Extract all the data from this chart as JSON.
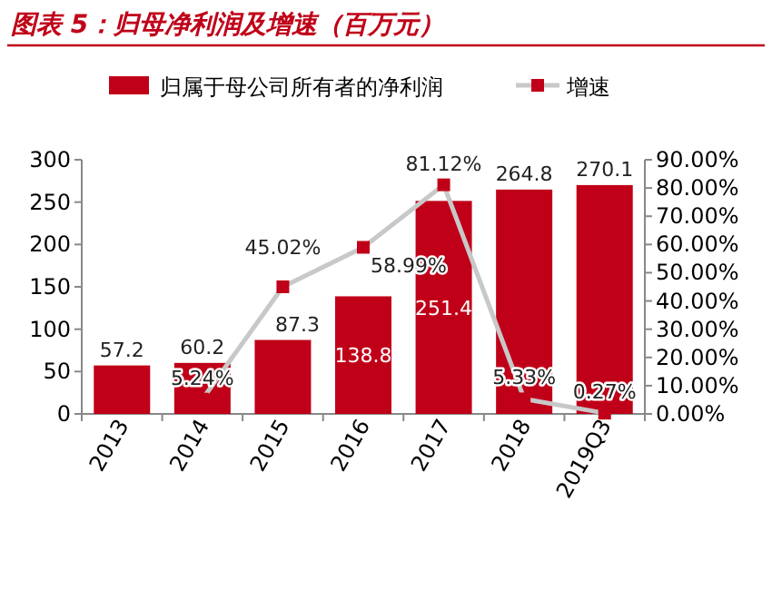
{
  "chart_data": {
    "type": "bar",
    "title": "图表 5：归母净利润及增速（百万元）",
    "categories": [
      "2013",
      "2014",
      "2015",
      "2016",
      "2017",
      "2018",
      "2019Q3"
    ],
    "series": [
      {
        "name": "归属于母公司所有者的净利润",
        "type": "bar",
        "color": "#c00018",
        "values": [
          57.2,
          60.2,
          87.3,
          138.8,
          251.4,
          264.8,
          270.1
        ]
      },
      {
        "name": "增速",
        "type": "line",
        "axis": "y2",
        "color": "#c8c8c8",
        "colors": [
          "#c00018",
          "#c00018",
          "#c00018",
          "#c00018",
          "#c00018",
          "#c00018",
          "#c00018"
        ],
        "marker": "square",
        "values": [
          null,
          5.24,
          45.02,
          58.99,
          81.12,
          5.33,
          0.27
        ],
        "value_labels": [
          null,
          "5.24%",
          "45.02%",
          "58.99%",
          "81.12%",
          "5.33%",
          "0.27%"
        ]
      }
    ],
    "ylim": [
      0,
      300
    ],
    "yticks": [
      0,
      50,
      100,
      150,
      200,
      250,
      300
    ],
    "y2lim": [
      0,
      90
    ],
    "y2ticks": [
      {
        "value": 0,
        "label": "0.00%"
      },
      {
        "value": 10,
        "label": "10.00%"
      },
      {
        "value": 20,
        "label": "20.00%"
      },
      {
        "value": 30,
        "label": "30.00%"
      },
      {
        "value": 40,
        "label": "40.00%"
      },
      {
        "value": 50,
        "label": "50.00%"
      },
      {
        "value": 60,
        "label": "60.00%"
      },
      {
        "value": 70,
        "label": "70.00%"
      },
      {
        "value": 80,
        "label": "80.00%"
      },
      {
        "value": 90,
        "label": "90.00%"
      }
    ],
    "data_labels": true,
    "legend": "top",
    "grid": false
  }
}
